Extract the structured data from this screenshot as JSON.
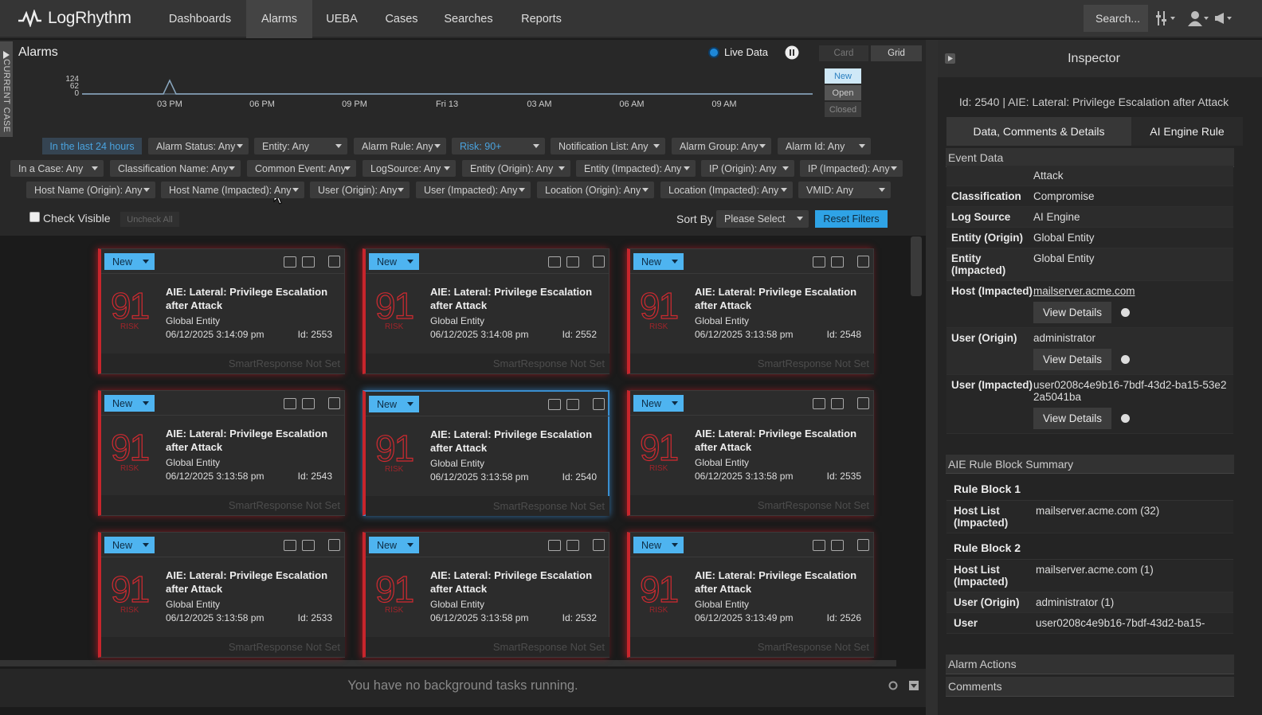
{
  "nav": {
    "brand": "LogRhythm",
    "items": [
      "Dashboards",
      "Alarms",
      "UEBA",
      "Cases",
      "Searches",
      "Reports"
    ],
    "search": "Search..."
  },
  "side_tab": "CURRENT CASE",
  "alarms": {
    "title": "Alarms",
    "live": "Live Data",
    "views": [
      "Card",
      "Grid"
    ],
    "statuses": [
      "New",
      "Open",
      "Closed"
    ],
    "timeline": {
      "yticks": [
        124,
        62,
        0
      ],
      "xlabels": [
        "03 PM",
        "06 PM",
        "09 PM",
        "Fri 13",
        "03 AM",
        "06 AM",
        "09 AM"
      ]
    },
    "time_filter": "In the last 24 hours",
    "filters": [
      [
        "Alarm Status: Any",
        "Entity: Any",
        "Alarm Rule: Any",
        "Risk: 90+",
        "Notification List: Any",
        "Alarm Group: Any",
        "Alarm Id: Any"
      ],
      [
        "In a Case: Any",
        "Classification Name: Any",
        "Common Event: Any",
        "LogSource: Any",
        "Entity (Origin): Any",
        "Entity (Impacted): Any",
        "IP (Origin): Any",
        "IP (Impacted): Any"
      ],
      [
        "Host Name (Origin): Any",
        "Host Name (Impacted): Any",
        "User (Origin): Any",
        "User (Impacted): Any",
        "Location (Origin): Any",
        "Location (Impacted): Any",
        "VMID: Any"
      ]
    ],
    "check_visible": "Check Visible",
    "uncheck_all": "Uncheck All",
    "sort_by": "Sort By",
    "sort_select": "Please Select",
    "reset": "Reset Filters",
    "cards": [
      {
        "status": "New",
        "risk": 91,
        "risk_label": "RISK",
        "title": "AIE: Lateral: Privilege Escalation after Attack",
        "entity": "Global Entity",
        "date": "06/12/2025 3:14:09 pm",
        "id": "Id: 2553",
        "response": "SmartResponse Not Set"
      },
      {
        "status": "New",
        "risk": 91,
        "risk_label": "RISK",
        "title": "AIE: Lateral: Privilege Escalation after Attack",
        "entity": "Global Entity",
        "date": "06/12/2025 3:14:08 pm",
        "id": "Id: 2552",
        "response": "SmartResponse Not Set"
      },
      {
        "status": "New",
        "risk": 91,
        "risk_label": "RISK",
        "title": "AIE: Lateral: Privilege Escalation after Attack",
        "entity": "Global Entity",
        "date": "06/12/2025 3:13:58 pm",
        "id": "Id: 2548",
        "response": "SmartResponse Not Set"
      },
      {
        "status": "New",
        "risk": 91,
        "risk_label": "RISK",
        "title": "AIE: Lateral: Privilege Escalation after Attack",
        "entity": "Global Entity",
        "date": "06/12/2025 3:13:58 pm",
        "id": "Id: 2543",
        "response": "SmartResponse Not Set"
      },
      {
        "status": "New",
        "risk": 91,
        "risk_label": "RISK",
        "title": "AIE: Lateral: Privilege Escalation after Attack",
        "entity": "Global Entity",
        "date": "06/12/2025 3:13:58 pm",
        "id": "Id: 2540",
        "response": "SmartResponse Not Set"
      },
      {
        "status": "New",
        "risk": 91,
        "risk_label": "RISK",
        "title": "AIE: Lateral: Privilege Escalation after Attack",
        "entity": "Global Entity",
        "date": "06/12/2025 3:13:58 pm",
        "id": "Id: 2535",
        "response": "SmartResponse Not Set"
      },
      {
        "status": "New",
        "risk": 91,
        "risk_label": "RISK",
        "title": "AIE: Lateral: Privilege Escalation after Attack",
        "entity": "Global Entity",
        "date": "06/12/2025 3:13:58 pm",
        "id": "Id: 2533",
        "response": "SmartResponse Not Set"
      },
      {
        "status": "New",
        "risk": 91,
        "risk_label": "RISK",
        "title": "AIE: Lateral: Privilege Escalation after Attack",
        "entity": "Global Entity",
        "date": "06/12/2025 3:13:58 pm",
        "id": "Id: 2532",
        "response": "SmartResponse Not Set"
      },
      {
        "status": "New",
        "risk": 91,
        "risk_label": "RISK",
        "title": "AIE: Lateral: Privilege Escalation after Attack",
        "entity": "Global Entity",
        "date": "06/12/2025 3:13:49 pm",
        "id": "Id: 2526",
        "response": "SmartResponse Not Set"
      }
    ],
    "footer": "You have no background tasks running."
  },
  "inspector": {
    "title": "Inspector",
    "subtitle": "Id: 2540 | AIE: Lateral: Privilege Escalation after Attack",
    "tabs": [
      "Data, Comments & Details",
      "AI Engine Rule"
    ],
    "event_data": {
      "title": "Event Data",
      "rows": [
        {
          "value": "Attack"
        },
        {
          "label": "Classification",
          "value": "Compromise"
        },
        {
          "label": "Log Source",
          "value": "AI Engine"
        },
        {
          "label": "Entity (Origin)",
          "value": "Global Entity"
        },
        {
          "label": "Entity (Impacted)",
          "value": "Global Entity"
        },
        {
          "label": "Host (Impacted)",
          "link": "mailserver.acme.com",
          "button": "View Details"
        },
        {
          "label": "User (Origin)",
          "value": "administrator",
          "button": "View Details"
        },
        {
          "label": "User (Impacted)",
          "value": "user0208c4e9b16-7bdf-43d2-ba15-53e22a5041ba",
          "button": "View Details"
        }
      ]
    },
    "rule_summary": {
      "title": "AIE Rule Block Summary",
      "blocks": [
        {
          "title": "Rule Block 1",
          "rows": [
            {
              "label": "Host List (Impacted)",
              "value": "mailserver.acme.com (32)"
            }
          ]
        },
        {
          "title": "Rule Block 2",
          "rows": [
            {
              "label": "Host List (Impacted)",
              "value": "mailserver.acme.com (1)"
            },
            {
              "label": "User (Origin)",
              "value": "administrator (1)"
            },
            {
              "label": "User",
              "value": "user0208c4e9b16-7bdf-43d2-ba15-"
            }
          ]
        }
      ]
    },
    "sections": [
      "Alarm Actions",
      "Comments"
    ]
  }
}
